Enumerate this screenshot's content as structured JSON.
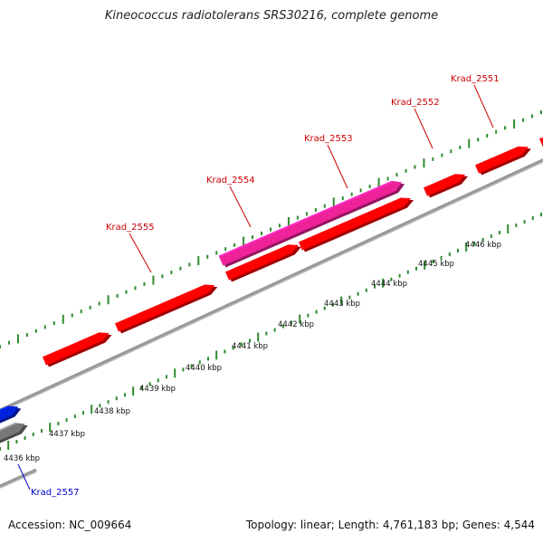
{
  "title": "Kineococcus radiotolerans SRS30216, complete genome",
  "footer": {
    "accession": "Accession: NC_009664",
    "summary": "Topology: linear; Length: 4,761,183 bp; Genes: 4,544"
  },
  "colors": {
    "gene_forward": "#ff0000",
    "gene_highlight": "#ee2299",
    "gene_blue": "#0022dd",
    "gene_gray": "#777777",
    "backbone": "#999999",
    "tick": "#2e8b2e",
    "label_red": "#cc0000",
    "label_blue": "#0000cc",
    "ruler_text": "#111111"
  },
  "scale_labels": [
    "4436 kbp",
    "4437 kbp",
    "4438 kbp",
    "4439 kbp",
    "4440 kbp",
    "4441 kbp",
    "4442 kbp",
    "4443 kbp",
    "4444 kbp",
    "4445 kbp",
    "4446 kbp"
  ],
  "gene_labels": [
    {
      "text": "Krad_2551",
      "color": "label_red"
    },
    {
      "text": "Krad_2552",
      "color": "label_red"
    },
    {
      "text": "Krad_2553",
      "color": "label_red"
    },
    {
      "text": "Krad_2554",
      "color": "label_red"
    },
    {
      "text": "Krad_2555",
      "color": "label_red"
    },
    {
      "text": "Krad_2557",
      "color": "label_blue"
    }
  ]
}
